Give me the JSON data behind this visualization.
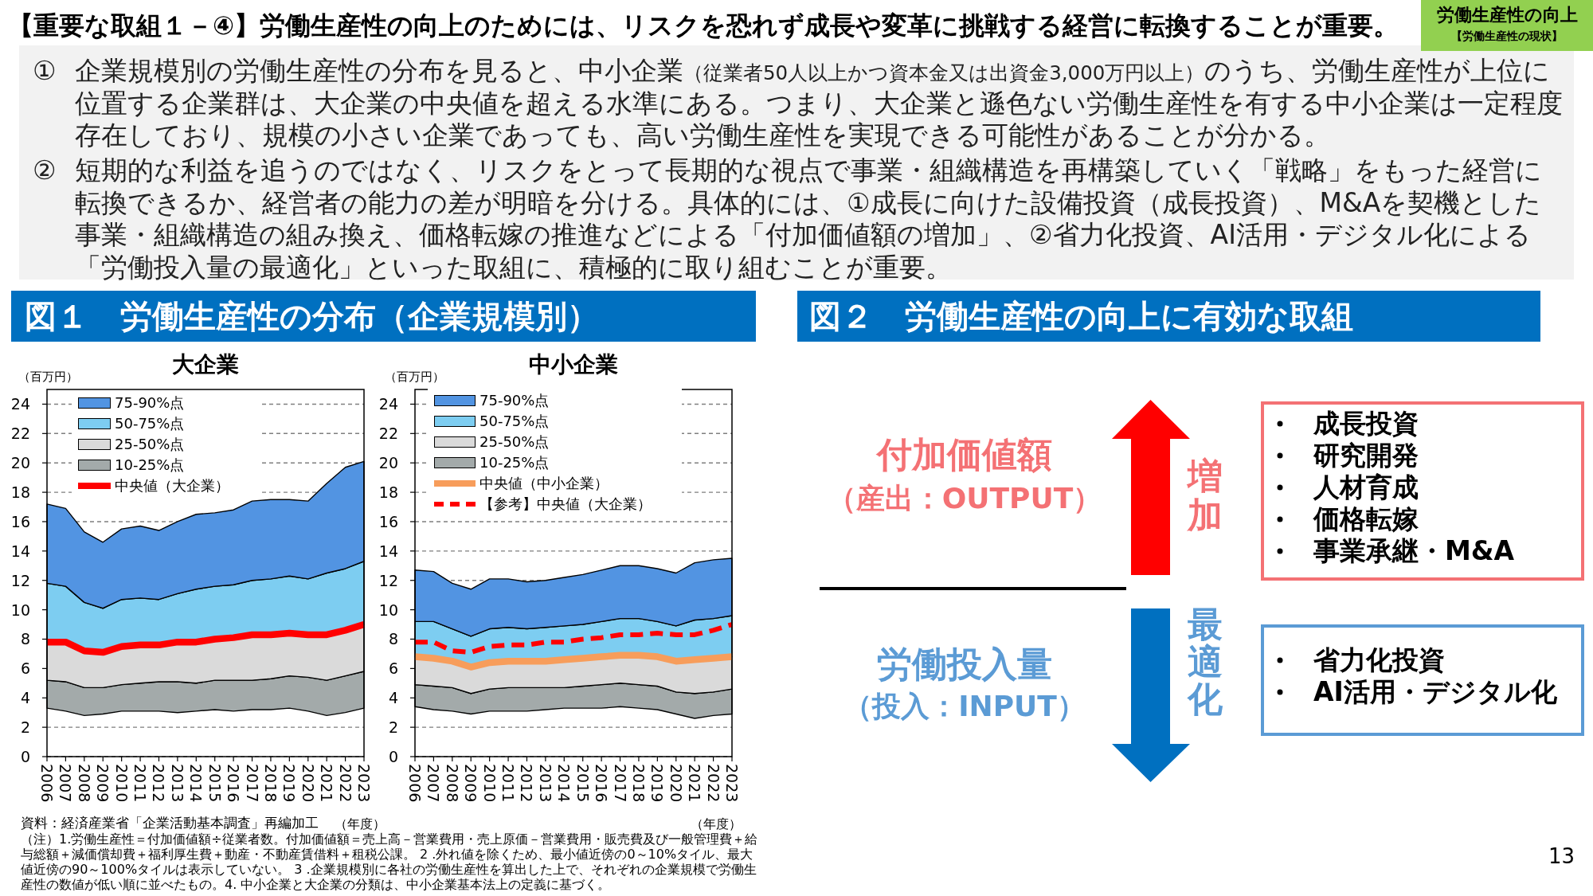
{
  "chart_data": [
    {
      "type": "area",
      "title": "大企業",
      "xlabel": "（年度）",
      "ylabel": "（百万円）",
      "categories": [
        "2006",
        "2007",
        "2008",
        "2009",
        "2010",
        "2011",
        "2012",
        "2013",
        "2014",
        "2015",
        "2016",
        "2017",
        "2018",
        "2019",
        "2020",
        "2021",
        "2022",
        "2023"
      ],
      "series": [
        {
          "name": "10-25%点",
          "type": "area",
          "color": "#a3aaaa",
          "values": [
            null,
            null,
            null,
            null,
            null,
            null,
            null,
            null,
            null,
            null,
            null,
            null,
            null,
            null,
            null,
            null,
            null,
            null
          ],
          "lower": [
            3.3,
            3.1,
            2.8,
            2.9,
            3.1,
            3.1,
            3.1,
            3.0,
            3.1,
            3.2,
            3.1,
            3.2,
            3.2,
            3.3,
            3.1,
            2.8,
            3.0,
            3.3
          ],
          "upper": [
            5.2,
            5.1,
            4.7,
            4.7,
            4.9,
            5.0,
            5.1,
            5.1,
            5.0,
            5.2,
            5.2,
            5.2,
            5.3,
            5.5,
            5.4,
            5.2,
            5.5,
            5.8
          ]
        },
        {
          "name": "25-50%点",
          "type": "area",
          "color": "#dadada",
          "values": [
            null,
            null,
            null,
            null,
            null,
            null,
            null,
            null,
            null,
            null,
            null,
            null,
            null,
            null,
            null,
            null,
            null,
            null
          ],
          "lower": [
            5.2,
            5.1,
            4.7,
            4.7,
            4.9,
            5.0,
            5.1,
            5.1,
            5.0,
            5.2,
            5.2,
            5.2,
            5.3,
            5.5,
            5.4,
            5.2,
            5.5,
            5.8
          ],
          "upper": [
            7.8,
            7.8,
            7.2,
            7.1,
            7.5,
            7.6,
            7.6,
            7.8,
            7.8,
            8.0,
            8.1,
            8.3,
            8.3,
            8.4,
            8.3,
            8.3,
            8.6,
            9.0
          ]
        },
        {
          "name": "50-75%点",
          "type": "area",
          "color": "#7dcdf1",
          "values": [
            null,
            null,
            null,
            null,
            null,
            null,
            null,
            null,
            null,
            null,
            null,
            null,
            null,
            null,
            null,
            null,
            null,
            null
          ],
          "lower": [
            7.8,
            7.8,
            7.2,
            7.1,
            7.5,
            7.6,
            7.6,
            7.8,
            7.8,
            8.0,
            8.1,
            8.3,
            8.3,
            8.4,
            8.3,
            8.3,
            8.6,
            9.0
          ],
          "upper": [
            11.8,
            11.6,
            10.5,
            10.1,
            10.7,
            10.8,
            10.7,
            11.1,
            11.4,
            11.6,
            11.7,
            12.0,
            12.1,
            12.3,
            12.1,
            12.5,
            12.8,
            13.3
          ]
        },
        {
          "name": "75-90%点",
          "type": "area",
          "color": "#5294e2",
          "values": [
            null,
            null,
            null,
            null,
            null,
            null,
            null,
            null,
            null,
            null,
            null,
            null,
            null,
            null,
            null,
            null,
            null,
            null
          ],
          "lower": [
            11.8,
            11.6,
            10.5,
            10.1,
            10.7,
            10.8,
            10.7,
            11.1,
            11.4,
            11.6,
            11.7,
            12.0,
            12.1,
            12.3,
            12.1,
            12.5,
            12.8,
            13.3
          ],
          "upper": [
            17.2,
            16.9,
            15.3,
            14.6,
            15.5,
            15.7,
            15.4,
            16.0,
            16.5,
            16.6,
            16.8,
            17.4,
            17.5,
            17.5,
            17.4,
            18.6,
            19.7,
            20.1
          ]
        },
        {
          "name": "中央値（大企業）",
          "type": "line",
          "color": "#ff0000",
          "values": [
            7.8,
            7.8,
            7.2,
            7.1,
            7.5,
            7.6,
            7.6,
            7.8,
            7.8,
            8.0,
            8.1,
            8.3,
            8.3,
            8.4,
            8.3,
            8.3,
            8.6,
            9.0
          ]
        }
      ],
      "ylim": [
        0,
        25
      ],
      "yticks": [
        0,
        2,
        4,
        6,
        8,
        10,
        12,
        14,
        16,
        18,
        20,
        22,
        24
      ],
      "grid": "y",
      "legend": "top left",
      "annotations": [
        "【重要な取組１－④】労働生産性の向上のためには、リスクを恐れず成長や変革に挑戦する経営に転換することが重要。",
        "労働生産性の向上",
        "【労働生産性の現状】",
        "①",
        "企業規模別の労働生産性の分布を見ると、中小企業",
        "（従業者50人以上かつ資本金又は出資金3,000万円以上）",
        "のうち、労働生産性が上位に",
        "位置する企業群は、大企業の中央値を超える水準にある。つまり、大企業と遜色ない労働生産性を有する中小企業は一定程度存在しており、規模の小さい企業であっても、高い労働生産性を実現できる可能性があることが分かる。",
        "②",
        "短期的な利益を追うのではなく、リスクをとって長期的な視点で事業・組織構造を再構築していく「戦略」をもった経営に転換できるか、経営者の能力の差が明暗を分ける。具体的には、①成長に向けた設備投資（成長投資）、M&Aを契機とした事業・組織構造の組み換え、価格転嫁の推進などによる「付加価値額の増加」、②省力化投資、AI活用・デジタル化による「労働投入量の最適化」といった取組に、積極的に取り組むことが重要。",
        "図１　労働生産性の分布（企業規模別）",
        "資料：経済産業省「企業活動基本調査」再編加工",
        "（注）1.労働生産性＝付加価値額÷従業者数。付加価値額＝売上高－営業費用・売上原価－営業費用・販売費及び一般管理費＋給与総額＋減価償却費＋福利厚生費＋動産・不動産賃借料＋租税公課。 2 .外れ値を除くため、最小値近傍の0～10%タイル、最大値近傍の90～100%タイルは表示していない。 3 .企業規模別に各社の労働生産性を算出した上で、それぞれの企業規模で労働生産性の数値が低い順に並べたもの。4. 中小企業と大企業の分類は、中小企業基本法上の定義に基づく。",
        "13"
      ]
    },
    {
      "type": "area",
      "title": "中小企業",
      "xlabel": "（年度）",
      "ylabel": "（百万円）",
      "categories": [
        "2006",
        "2007",
        "2008",
        "2009",
        "2010",
        "2011",
        "2012",
        "2013",
        "2014",
        "2015",
        "2016",
        "2017",
        "2018",
        "2019",
        "2020",
        "2021",
        "2022",
        "2023"
      ],
      "series": [
        {
          "name": "10-25%点",
          "type": "area",
          "color": "#a3aaaa",
          "values": [
            null,
            null,
            null,
            null,
            null,
            null,
            null,
            null,
            null,
            null,
            null,
            null,
            null,
            null,
            null,
            null,
            null,
            null
          ],
          "lower": [
            3.4,
            3.2,
            3.1,
            2.9,
            3.1,
            3.1,
            3.1,
            3.2,
            3.3,
            3.3,
            3.3,
            3.4,
            3.3,
            3.2,
            2.9,
            2.6,
            2.8,
            2.9
          ],
          "upper": [
            4.9,
            4.8,
            4.7,
            4.3,
            4.6,
            4.7,
            4.7,
            4.7,
            4.7,
            4.8,
            4.9,
            5.0,
            4.9,
            4.8,
            4.4,
            4.3,
            4.4,
            4.6
          ]
        },
        {
          "name": "25-50%点",
          "type": "area",
          "color": "#dadada",
          "values": [
            null,
            null,
            null,
            null,
            null,
            null,
            null,
            null,
            null,
            null,
            null,
            null,
            null,
            null,
            null,
            null,
            null,
            null
          ],
          "lower": [
            4.9,
            4.8,
            4.7,
            4.3,
            4.6,
            4.7,
            4.7,
            4.7,
            4.7,
            4.8,
            4.9,
            5.0,
            4.9,
            4.8,
            4.4,
            4.3,
            4.4,
            4.6
          ],
          "upper": [
            6.8,
            6.7,
            6.5,
            6.1,
            6.4,
            6.5,
            6.5,
            6.5,
            6.6,
            6.7,
            6.8,
            6.9,
            6.9,
            6.8,
            6.5,
            6.6,
            6.7,
            6.8
          ]
        },
        {
          "name": "50-75%点",
          "type": "area",
          "color": "#7dcdf1",
          "values": [
            null,
            null,
            null,
            null,
            null,
            null,
            null,
            null,
            null,
            null,
            null,
            null,
            null,
            null,
            null,
            null,
            null,
            null
          ],
          "lower": [
            6.8,
            6.7,
            6.5,
            6.1,
            6.4,
            6.5,
            6.5,
            6.5,
            6.6,
            6.7,
            6.8,
            6.9,
            6.9,
            6.8,
            6.5,
            6.6,
            6.7,
            6.8
          ],
          "upper": [
            9.2,
            9.2,
            8.7,
            8.2,
            8.7,
            8.8,
            8.7,
            8.8,
            8.9,
            9.0,
            9.2,
            9.4,
            9.4,
            9.2,
            8.9,
            9.3,
            9.4,
            9.6
          ]
        },
        {
          "name": "75-90%点",
          "type": "area",
          "color": "#5294e2",
          "values": [
            null,
            null,
            null,
            null,
            null,
            null,
            null,
            null,
            null,
            null,
            null,
            null,
            null,
            null,
            null,
            null,
            null,
            null
          ],
          "lower": [
            9.2,
            9.2,
            8.7,
            8.2,
            8.7,
            8.8,
            8.7,
            8.8,
            8.9,
            9.0,
            9.2,
            9.4,
            9.4,
            9.2,
            8.9,
            9.3,
            9.4,
            9.6
          ],
          "upper": [
            12.7,
            12.6,
            11.8,
            11.4,
            12.1,
            12.1,
            11.9,
            12.0,
            12.2,
            12.4,
            12.7,
            13.0,
            13.0,
            12.8,
            12.5,
            13.2,
            13.4,
            13.5
          ]
        },
        {
          "name": "中央値（中小企業）",
          "type": "line",
          "color": "#f79d5b",
          "values": [
            6.8,
            6.7,
            6.5,
            6.1,
            6.4,
            6.5,
            6.5,
            6.5,
            6.6,
            6.7,
            6.8,
            6.9,
            6.9,
            6.8,
            6.5,
            6.6,
            6.7,
            6.8
          ]
        },
        {
          "name": "【参考】中央値（大企業）",
          "type": "line",
          "color": "#ff0000",
          "line_style": "dashed",
          "values": [
            7.8,
            7.8,
            7.2,
            7.1,
            7.5,
            7.6,
            7.6,
            7.8,
            7.8,
            8.0,
            8.1,
            8.3,
            8.3,
            8.4,
            8.3,
            8.3,
            8.6,
            9.0
          ]
        }
      ],
      "ylim": [
        0,
        25
      ],
      "yticks": [
        0,
        2,
        4,
        6,
        8,
        10,
        12,
        14,
        16,
        18,
        20,
        22,
        24
      ],
      "grid": "y",
      "legend": "top left"
    },
    {
      "type": "other",
      "title": "図２　労働生産性の向上に有効な取組",
      "annotations": [
        "付加価値額",
        "（産出：OUTPUT）",
        "増加",
        "成長投資",
        "研究開発",
        "人材育成",
        "価格転嫁",
        "事業承継・M&A",
        "労働投入量",
        "（投入：INPUT）",
        "最適化",
        "省力化投資",
        "AI活用・デジタル化"
      ]
    }
  ]
}
